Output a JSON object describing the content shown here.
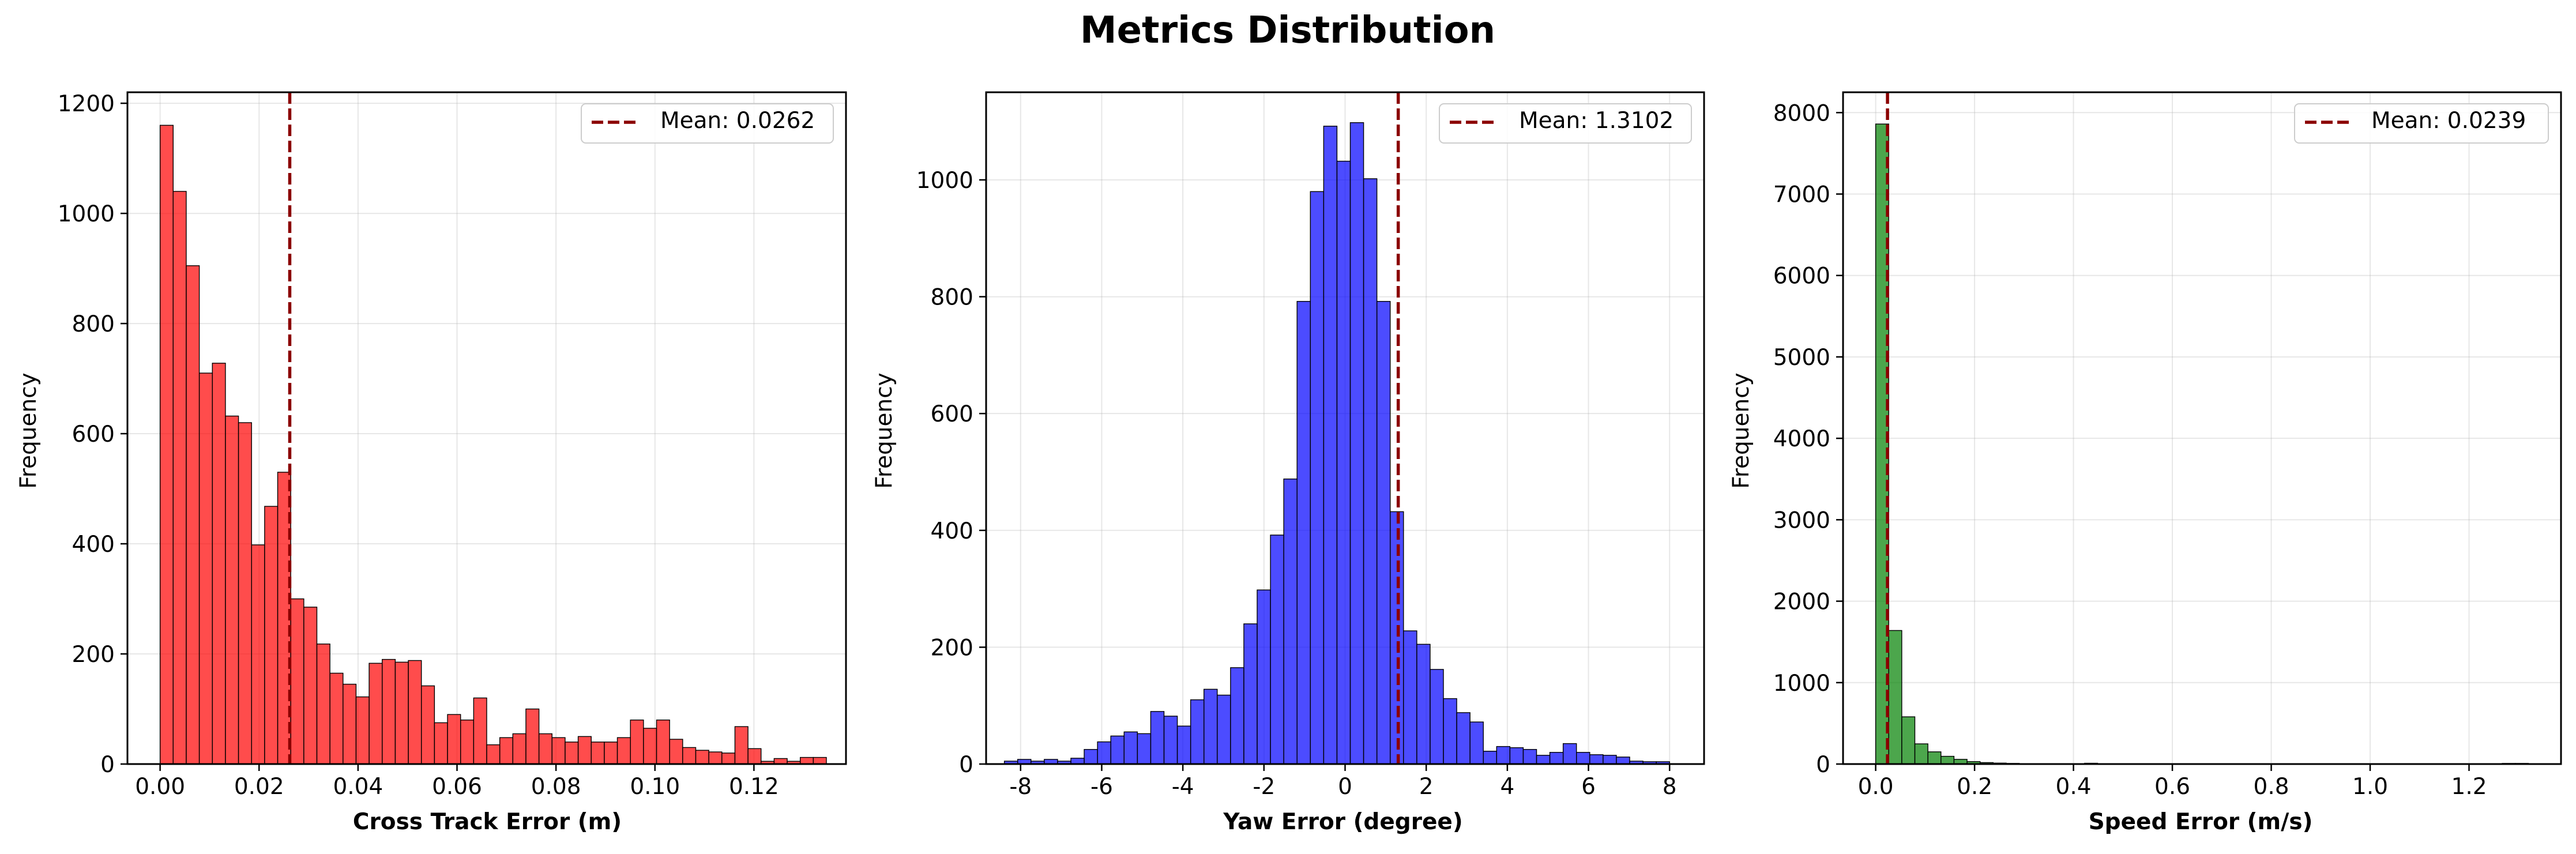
{
  "figure": {
    "title": "Metrics Distribution"
  },
  "chart_data": [
    {
      "type": "bar",
      "subtype": "histogram",
      "xlabel": "Cross Track Error (m)",
      "ylabel": "Frequency",
      "xlim": [
        -0.0066,
        0.1386
      ],
      "ylim": [
        0,
        1220
      ],
      "xticks": [
        0.0,
        0.02,
        0.04,
        0.06,
        0.08,
        0.1,
        0.12
      ],
      "xtick_labels": [
        "0.00",
        "0.02",
        "0.04",
        "0.06",
        "0.08",
        "0.10",
        "0.12"
      ],
      "yticks": [
        0,
        200,
        400,
        600,
        800,
        1000,
        1200
      ],
      "ytick_labels": [
        "0",
        "200",
        "400",
        "600",
        "800",
        "1000",
        "1200"
      ],
      "bin_start": 0.0,
      "bin_width": 0.00264,
      "values": [
        1160,
        1040,
        905,
        710,
        728,
        632,
        620,
        398,
        468,
        530,
        300,
        285,
        218,
        165,
        145,
        122,
        183,
        190,
        185,
        188,
        142,
        75,
        90,
        80,
        120,
        35,
        48,
        55,
        100,
        55,
        48,
        40,
        50,
        40,
        40,
        48,
        80,
        65,
        80,
        45,
        30,
        25,
        22,
        20,
        68,
        28,
        5,
        10,
        5,
        12,
        12
      ],
      "color": "#ff0000",
      "mean": 0.0262,
      "legend": [
        "Mean: 0.0262"
      ],
      "legend_position": "top-right",
      "grid": true
    },
    {
      "type": "bar",
      "subtype": "histogram",
      "xlabel": "Yaw Error (degree)",
      "ylabel": "Frequency",
      "xlim": [
        -8.85,
        8.85
      ],
      "ylim": [
        0,
        1150
      ],
      "xticks": [
        -8,
        -6,
        -4,
        -2,
        0,
        2,
        4,
        6,
        8
      ],
      "xtick_labels": [
        "-8",
        "-6",
        "-4",
        "-2",
        "0",
        "2",
        "4",
        "6",
        "8"
      ],
      "yticks": [
        0,
        200,
        400,
        600,
        800,
        1000
      ],
      "ytick_labels": [
        "0",
        "200",
        "400",
        "600",
        "800",
        "1000"
      ],
      "bin_start": -8.4,
      "bin_width": 0.328,
      "values": [
        5,
        8,
        5,
        8,
        5,
        10,
        25,
        38,
        48,
        55,
        52,
        90,
        82,
        65,
        110,
        128,
        118,
        165,
        240,
        298,
        392,
        488,
        792,
        980,
        1092,
        1032,
        1098,
        1002,
        792,
        432,
        228,
        205,
        162,
        112,
        88,
        72,
        22,
        30,
        28,
        25,
        15,
        20,
        35,
        20,
        16,
        15,
        12,
        5,
        4,
        4
      ],
      "color": "#0000ff",
      "mean": 1.3102,
      "legend": [
        "Mean: 1.3102"
      ],
      "legend_position": "top-right",
      "grid": true
    },
    {
      "type": "bar",
      "subtype": "histogram",
      "xlabel": "Speed Error (m/s)",
      "ylabel": "Frequency",
      "xlim": [
        -0.066,
        1.386
      ],
      "ylim": [
        0,
        8250
      ],
      "xticks": [
        0.0,
        0.2,
        0.4,
        0.6,
        0.8,
        1.0,
        1.2
      ],
      "xtick_labels": [
        "0.0",
        "0.2",
        "0.4",
        "0.6",
        "0.8",
        "1.0",
        "1.2"
      ],
      "yticks": [
        0,
        1000,
        2000,
        3000,
        4000,
        5000,
        6000,
        7000,
        8000
      ],
      "ytick_labels": [
        "0",
        "1000",
        "2000",
        "3000",
        "4000",
        "5000",
        "6000",
        "7000",
        "8000"
      ],
      "bin_start": 0.0,
      "bin_width": 0.0264,
      "values": [
        7860,
        1640,
        580,
        248,
        150,
        95,
        58,
        30,
        18,
        12,
        8,
        5,
        4,
        3,
        3,
        2,
        10,
        3,
        2,
        2,
        2,
        2,
        2,
        2,
        3,
        2,
        2,
        2,
        2,
        2,
        2,
        2,
        2,
        2,
        2,
        2,
        2,
        2,
        2,
        2,
        2,
        2,
        2,
        2,
        2,
        2,
        2,
        2,
        8,
        8
      ],
      "color": "#008000",
      "mean": 0.0239,
      "legend": [
        "Mean: 0.0239"
      ],
      "legend_position": "top-right",
      "grid": true
    }
  ]
}
